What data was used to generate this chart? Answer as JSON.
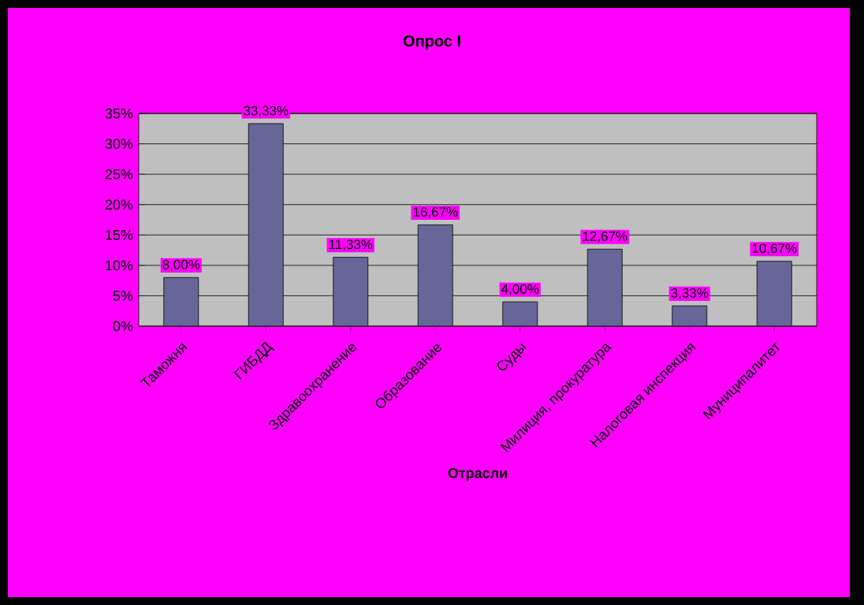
{
  "chart_data": {
    "type": "bar",
    "title": "Опрос I",
    "xlabel": "Отрасли",
    "categories": [
      "Таможня",
      "ГИБДД",
      "Здравоохранение",
      "Образование",
      "Суды",
      "Милиция, прокуратура",
      "Налоговая инспекция",
      "Муниципалитет"
    ],
    "values": [
      8.0,
      33.33,
      11.33,
      16.67,
      4.0,
      12.67,
      3.33,
      10.67
    ],
    "value_labels": [
      "8,00%",
      "33,33%",
      "11,33%",
      "16,67%",
      "4,00%",
      "12,67%",
      "3,33%",
      "10,67%"
    ],
    "color": "#666699",
    "ylim": [
      0,
      35
    ],
    "yticks": [
      {
        "value": 0,
        "label": "0%"
      },
      {
        "value": 5,
        "label": "5%"
      },
      {
        "value": 10,
        "label": "10%"
      },
      {
        "value": 15,
        "label": "15%"
      },
      {
        "value": 20,
        "label": "20%"
      },
      {
        "value": 25,
        "label": "25%"
      },
      {
        "value": 30,
        "label": "30%"
      },
      {
        "value": 35,
        "label": "35%"
      }
    ],
    "grid": "y"
  }
}
